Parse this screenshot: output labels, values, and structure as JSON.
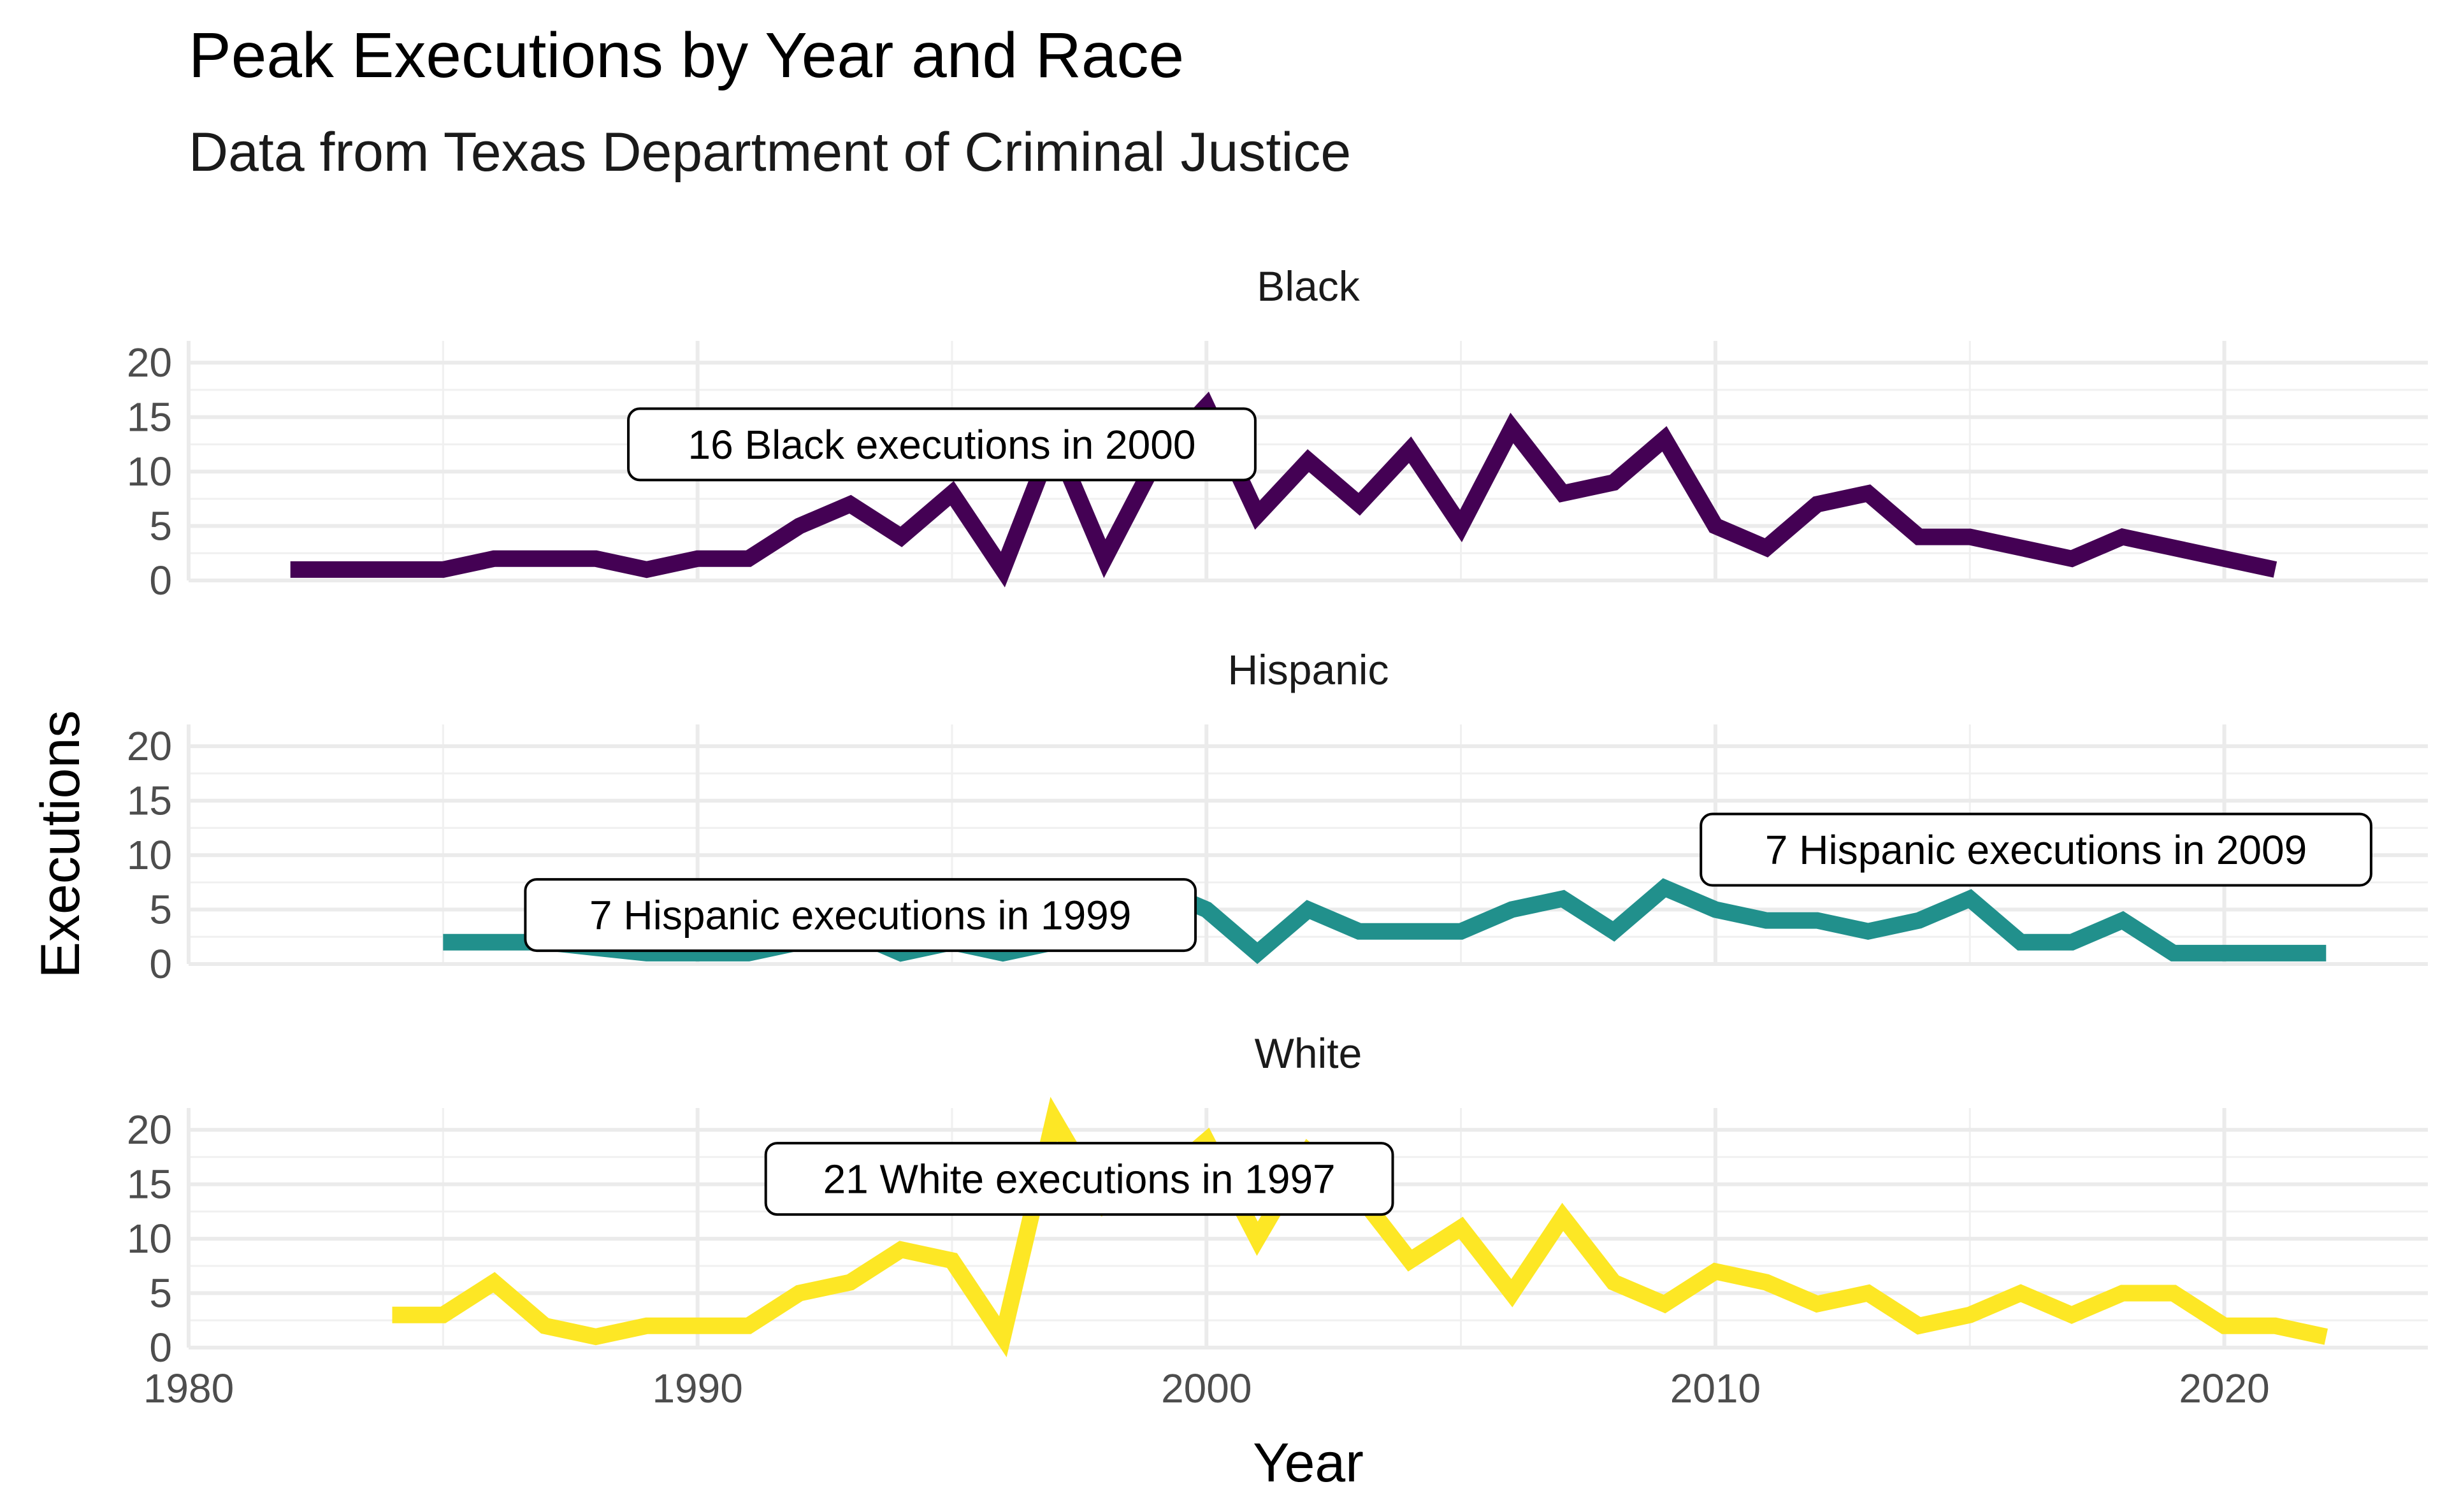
{
  "title": "Peak Executions by Year and Race",
  "subtitle": "Data from Texas Department of Criminal Justice",
  "chart_data": {
    "type": "line",
    "title": "Peak Executions by Year and Race",
    "subtitle": "Data from Texas Department of Criminal Justice",
    "xlabel": "Year",
    "ylabel": "Executions",
    "xlim": [
      1980,
      2024
    ],
    "ylim": [
      0,
      22
    ],
    "x_ticks": [
      1980,
      1990,
      2000,
      2010,
      2020
    ],
    "y_ticks": [
      0,
      5,
      10,
      15,
      20
    ],
    "grid": true,
    "legend": "none",
    "colors": {
      "Black": "#440154",
      "Hispanic": "#21908C",
      "White": "#FDE725"
    },
    "facets": [
      {
        "name": "Black",
        "x": [
          1982,
          1983,
          1984,
          1985,
          1986,
          1987,
          1988,
          1989,
          1990,
          1991,
          1992,
          1993,
          1994,
          1995,
          1996,
          1997,
          1998,
          1999,
          2000,
          2001,
          2002,
          2003,
          2004,
          2005,
          2006,
          2007,
          2008,
          2009,
          2010,
          2011,
          2012,
          2013,
          2014,
          2015,
          2016,
          2017,
          2018,
          2019,
          2020,
          2021
        ],
        "values": [
          1,
          1,
          1,
          1,
          2,
          2,
          2,
          1,
          2,
          2,
          5,
          7,
          4,
          8,
          1,
          13,
          2,
          11,
          16,
          6,
          11,
          7,
          12,
          5,
          14,
          8,
          9,
          13,
          5,
          3,
          7,
          8,
          4,
          4,
          3,
          2,
          4,
          3,
          2,
          1
        ],
        "annotations": [
          {
            "text": "16 Black executions in 2000",
            "x": 1994.8,
            "y": 12.5
          }
        ]
      },
      {
        "name": "Hispanic",
        "x": [
          1985,
          1986,
          1987,
          1988,
          1989,
          1990,
          1991,
          1992,
          1993,
          1994,
          1995,
          1996,
          1997,
          1998,
          1999,
          2000,
          2001,
          2002,
          2003,
          2004,
          2005,
          2006,
          2007,
          2008,
          2009,
          2010,
          2011,
          2012,
          2013,
          2014,
          2015,
          2016,
          2017,
          2018,
          2019,
          2020,
          2021,
          2022
        ],
        "values": [
          2,
          2,
          2,
          1.5,
          1,
          1,
          1,
          2,
          3,
          1,
          2,
          1,
          2,
          5,
          7,
          5,
          1,
          5,
          3,
          3,
          3,
          5,
          6,
          3,
          7,
          5,
          4,
          4,
          3,
          4,
          6,
          2,
          2,
          4,
          1,
          1,
          1,
          1
        ],
        "annotations": [
          {
            "text": "7 Hispanic executions in 1999",
            "x": 1993.2,
            "y": 4.5
          },
          {
            "text": "7 Hispanic executions in 2009",
            "x": 2016.3,
            "y": 10.5
          }
        ]
      },
      {
        "name": "White",
        "x": [
          1984,
          1985,
          1986,
          1987,
          1988,
          1989,
          1990,
          1991,
          1992,
          1993,
          1994,
          1995,
          1996,
          1997,
          1998,
          1999,
          2000,
          2001,
          2002,
          2003,
          2004,
          2005,
          2006,
          2007,
          2008,
          2009,
          2010,
          2011,
          2012,
          2013,
          2014,
          2015,
          2016,
          2017,
          2018,
          2019,
          2020,
          2021,
          2022
        ],
        "values": [
          3,
          3,
          6,
          2,
          1,
          2,
          2,
          2,
          5,
          6,
          9,
          8,
          1,
          21,
          13,
          15,
          19,
          10,
          18,
          14,
          8,
          11,
          5,
          12,
          6,
          4,
          7,
          6,
          4,
          5,
          2,
          3,
          5,
          3,
          5,
          5,
          2,
          2,
          1
        ],
        "annotations": [
          {
            "text": "21 White executions in 1997",
            "x": 1997.5,
            "y": 15.5
          }
        ]
      }
    ]
  }
}
